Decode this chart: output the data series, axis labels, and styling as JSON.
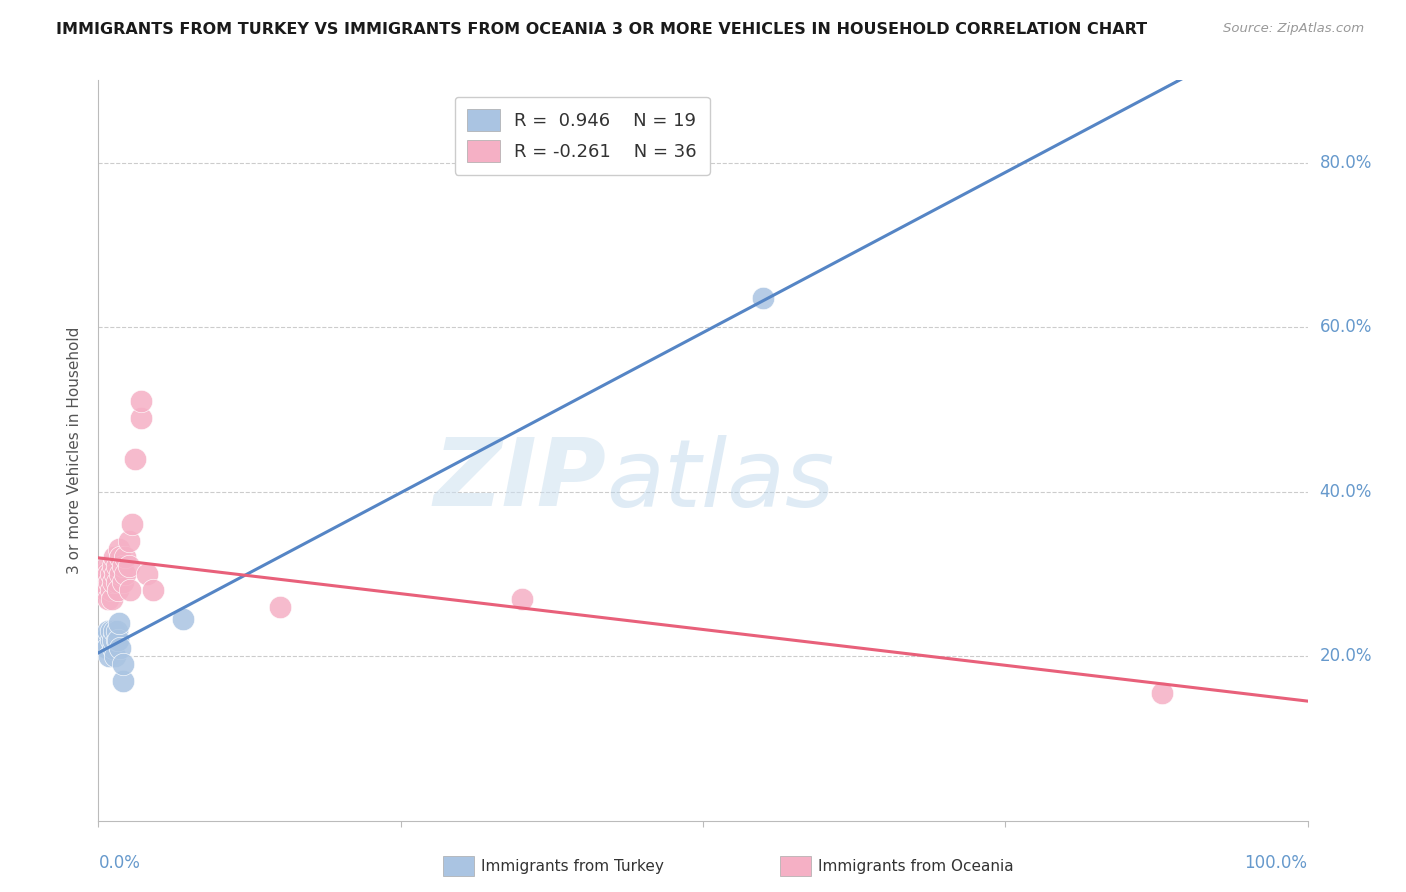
{
  "title": "IMMIGRANTS FROM TURKEY VS IMMIGRANTS FROM OCEANIA 3 OR MORE VEHICLES IN HOUSEHOLD CORRELATION CHART",
  "source": "Source: ZipAtlas.com",
  "ylabel": "3 or more Vehicles in Household",
  "xlim": [
    0.0,
    1.0
  ],
  "ylim": [
    0.0,
    0.9
  ],
  "ytick_values": [
    0.2,
    0.4,
    0.6,
    0.8
  ],
  "xtick_values": [
    0.0,
    0.25,
    0.5,
    0.75,
    1.0
  ],
  "blue_R": 0.946,
  "blue_N": 19,
  "pink_R": -0.261,
  "pink_N": 36,
  "blue_scatter_color": "#aac4e2",
  "pink_scatter_color": "#f5b0c5",
  "blue_line_color": "#5585c5",
  "pink_line_color": "#e8607a",
  "axis_color": "#bbbbbb",
  "grid_color": "#cccccc",
  "right_label_color": "#6699cc",
  "turkey_x": [
    0.005,
    0.007,
    0.008,
    0.009,
    0.01,
    0.01,
    0.012,
    0.012,
    0.013,
    0.014,
    0.015,
    0.015,
    0.016,
    0.017,
    0.018,
    0.02,
    0.02,
    0.55,
    0.07
  ],
  "turkey_y": [
    0.22,
    0.21,
    0.23,
    0.2,
    0.22,
    0.23,
    0.21,
    0.22,
    0.23,
    0.2,
    0.22,
    0.23,
    0.22,
    0.24,
    0.21,
    0.17,
    0.19,
    0.635,
    0.245
  ],
  "oceania_x": [
    0.004,
    0.005,
    0.006,
    0.007,
    0.008,
    0.008,
    0.009,
    0.01,
    0.01,
    0.011,
    0.012,
    0.012,
    0.013,
    0.014,
    0.015,
    0.015,
    0.016,
    0.017,
    0.018,
    0.018,
    0.02,
    0.02,
    0.022,
    0.022,
    0.025,
    0.025,
    0.026,
    0.028,
    0.03,
    0.035,
    0.035,
    0.04,
    0.045,
    0.35,
    0.88,
    0.15
  ],
  "oceania_y": [
    0.29,
    0.3,
    0.28,
    0.31,
    0.27,
    0.3,
    0.29,
    0.28,
    0.3,
    0.27,
    0.29,
    0.31,
    0.32,
    0.3,
    0.29,
    0.31,
    0.28,
    0.33,
    0.3,
    0.32,
    0.29,
    0.31,
    0.3,
    0.32,
    0.31,
    0.34,
    0.28,
    0.36,
    0.44,
    0.49,
    0.51,
    0.3,
    0.28,
    0.27,
    0.155,
    0.26
  ]
}
